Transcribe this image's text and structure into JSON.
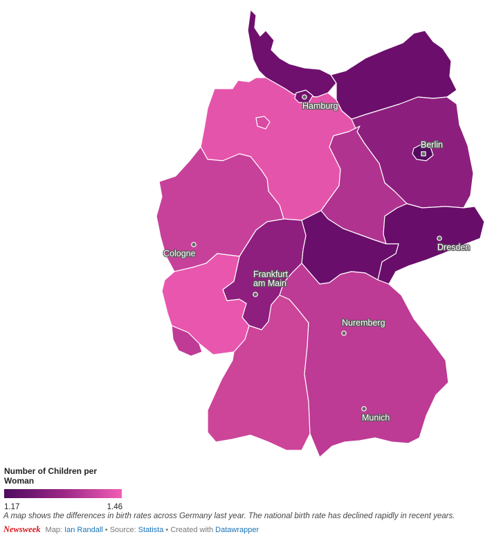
{
  "map": {
    "scale": {
      "min": 1.17,
      "max": 1.46,
      "color_min": "#4e0b5e",
      "color_max": "#f25db6"
    },
    "regions": [
      {
        "id": "schleswig-holstein",
        "value": 1.22,
        "color": "#6f0f6e"
      },
      {
        "id": "hamburg",
        "value": 1.24,
        "color": "#74116f"
      },
      {
        "id": "mecklenburg-vorpommern",
        "value": 1.21,
        "color": "#6c0e6c"
      },
      {
        "id": "lower-saxony",
        "value": 1.46,
        "color": "#e554ab"
      },
      {
        "id": "bremen",
        "value": 1.41,
        "color": "#d84aa3"
      },
      {
        "id": "berlin",
        "value": 1.17,
        "color": "#540a5f"
      },
      {
        "id": "brandenburg",
        "value": 1.29,
        "color": "#8c1f7d"
      },
      {
        "id": "saxony-anhalt",
        "value": 1.36,
        "color": "#b0338f"
      },
      {
        "id": "saxony",
        "value": 1.19,
        "color": "#690d6b"
      },
      {
        "id": "thuringia",
        "value": 1.2,
        "color": "#6a0e6b"
      },
      {
        "id": "hesse",
        "value": 1.29,
        "color": "#8e1f7e"
      },
      {
        "id": "north-rhine-westphalia",
        "value": 1.39,
        "color": "#c7419b"
      },
      {
        "id": "rhineland-palatinate",
        "value": 1.45,
        "color": "#e856ae"
      },
      {
        "id": "saarland",
        "value": 1.38,
        "color": "#c03b96"
      },
      {
        "id": "baden-wuerttemberg",
        "value": 1.4,
        "color": "#cc4599"
      },
      {
        "id": "bavaria",
        "value": 1.37,
        "color": "#bd3a95"
      }
    ],
    "cities": [
      {
        "id": "hamburg",
        "name": "Hamburg"
      },
      {
        "id": "berlin",
        "name": "Berlin"
      },
      {
        "id": "cologne",
        "name": "Cologne"
      },
      {
        "id": "dresden",
        "name": "Dresden"
      },
      {
        "id": "frankfurt",
        "name": "Frankfurt am Main",
        "lines": [
          "Frankfurt",
          "am Main"
        ]
      },
      {
        "id": "nuremberg",
        "name": "Nuremberg"
      },
      {
        "id": "munich",
        "name": "Munich"
      }
    ]
  },
  "legend": {
    "title": "Number of Children per Woman",
    "min_label": "1.17",
    "max_label": "1.46"
  },
  "caption": "A map shows the differences in birth rates across Germany last year. The national birth rate has declined rapidly in recent years.",
  "footer": {
    "brand": "Newsweek",
    "map_prefix": "Map:",
    "author": "Ian Randall",
    "source_prefix": "• Source:",
    "source": "Statista",
    "created_prefix": "• Created with",
    "tool": "Datawrapper"
  }
}
